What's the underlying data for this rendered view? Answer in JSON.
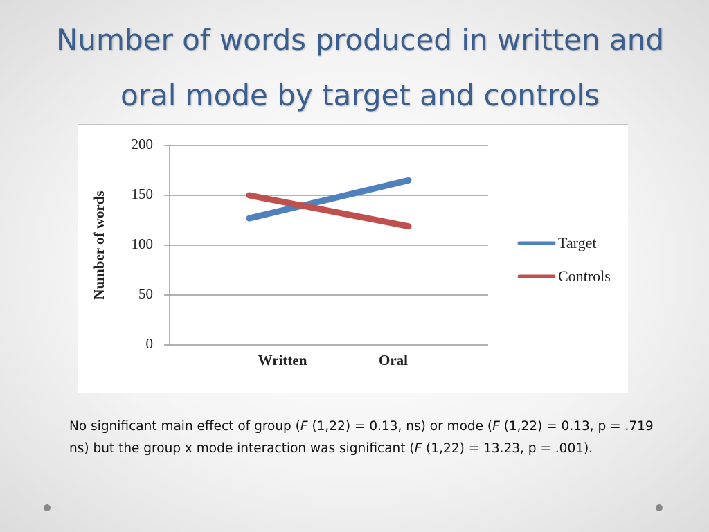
{
  "chart_data": {
    "type": "line",
    "title": "Number of words produced in written and oral mode by target and controls",
    "y_label": "Number of words",
    "categories": [
      "Written",
      "Oral"
    ],
    "series": [
      {
        "name": "Target",
        "color": "#4f81bd",
        "values": [
          127,
          165
        ]
      },
      {
        "name": "Controls",
        "color": "#c0504d",
        "values": [
          150,
          119
        ]
      }
    ],
    "ylim": [
      0,
      200
    ],
    "yticks": [
      0,
      50,
      100,
      150,
      200
    ],
    "grid": true,
    "legend": "right",
    "caption": [
      "No significant main effect of group (",
      "F",
      " (1,22) = 0.13, ns) or mode (",
      "F",
      " (1,22) = 0.13, p = .719 ns) but the group x mode interaction was significant (",
      "F",
      " (1,22) = 13.23, p = .001)."
    ]
  }
}
